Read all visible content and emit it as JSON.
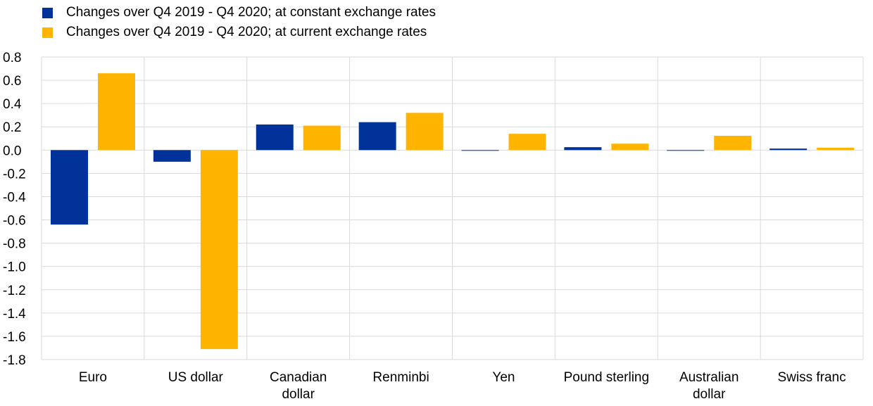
{
  "chart_data": {
    "type": "bar",
    "categories": [
      [
        "Euro"
      ],
      [
        "US dollar"
      ],
      [
        "Canadian",
        "dollar"
      ],
      [
        "Renminbi"
      ],
      [
        "Yen"
      ],
      [
        "Pound sterling"
      ],
      [
        "Australian",
        "dollar"
      ],
      [
        "Swiss franc"
      ]
    ],
    "series": [
      {
        "name": "Changes over Q4 2019 - Q4 2020; at constant exchange rates",
        "color": "#003299",
        "values": [
          -0.64,
          -0.1,
          0.22,
          0.24,
          -0.005,
          0.025,
          0.0,
          0.013
        ]
      },
      {
        "name": "Changes over Q4 2019 - Q4 2020; at current exchange rates",
        "color": "#FFB400",
        "values": [
          0.66,
          -1.71,
          0.21,
          0.32,
          0.14,
          0.055,
          0.123,
          0.02
        ]
      }
    ],
    "ylim": [
      -1.8,
      0.8
    ],
    "yticks": [
      "0.8",
      "0.6",
      "0.4",
      "0.2",
      "0.0",
      "-0.2",
      "-0.4",
      "-0.6",
      "-0.8",
      "-1.0",
      "-1.2",
      "-1.4",
      "-1.6",
      "-1.8"
    ],
    "grid": true,
    "legend_position": "top-left"
  }
}
